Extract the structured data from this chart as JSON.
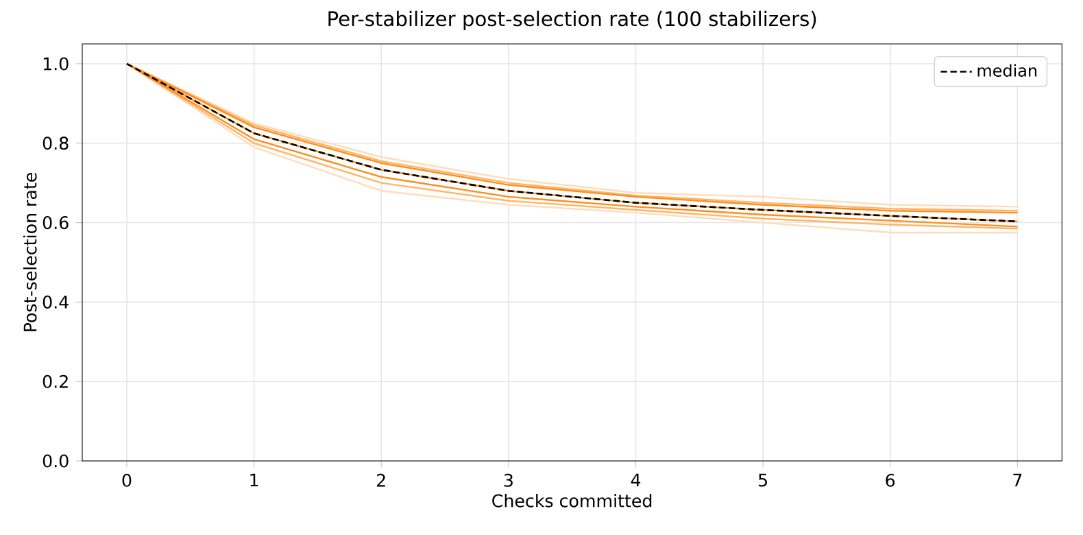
{
  "chart_data": {
    "type": "line",
    "title": "Per-stabilizer post-selection rate (100 stabilizers)",
    "xlabel": "Checks committed",
    "ylabel": "Post-selection rate",
    "x": [
      0,
      1,
      2,
      3,
      4,
      5,
      6,
      7
    ],
    "series": [
      {
        "color": "#ffdcb8",
        "line_style": "solid",
        "values": [
          1.0,
          0.85,
          0.765,
          0.71,
          0.675,
          0.665,
          0.645,
          0.64
        ]
      },
      {
        "color": "#ffdcb8",
        "line_style": "solid",
        "values": [
          1.0,
          0.79,
          0.68,
          0.645,
          0.625,
          0.6,
          0.575,
          0.575
        ]
      },
      {
        "color": "#ffb466",
        "line_style": "solid",
        "values": [
          1.0,
          0.845,
          0.755,
          0.7,
          0.668,
          0.65,
          0.635,
          0.63
        ]
      },
      {
        "color": "#ffb466",
        "line_style": "solid",
        "values": [
          1.0,
          0.8,
          0.7,
          0.655,
          0.632,
          0.61,
          0.595,
          0.585
        ]
      },
      {
        "color": "#ff8c1a",
        "line_style": "solid",
        "values": [
          1.0,
          0.84,
          0.75,
          0.695,
          0.665,
          0.645,
          0.63,
          0.625
        ]
      },
      {
        "color": "#ff8c1a",
        "line_style": "solid",
        "values": [
          1.0,
          0.81,
          0.715,
          0.665,
          0.64,
          0.62,
          0.605,
          0.59
        ]
      },
      {
        "color": "#ff8c1a",
        "line_style": "solid",
        "values": [
          1.0,
          0.825,
          0.733,
          0.68,
          0.65,
          0.632,
          0.617,
          0.603
        ]
      },
      {
        "name": "median",
        "color": "#000000",
        "line_style": "dashed",
        "values": [
          1.0,
          0.825,
          0.733,
          0.68,
          0.65,
          0.632,
          0.617,
          0.603
        ]
      }
    ],
    "xlim": [
      -0.35,
      7.35
    ],
    "ylim": [
      0,
      1.05
    ],
    "xticks": [
      0,
      1,
      2,
      3,
      4,
      5,
      6,
      7
    ],
    "yticks": [
      {
        "value": 0,
        "label": "0.0"
      },
      {
        "value": 0.2,
        "label": "0.2"
      },
      {
        "value": 0.4,
        "label": "0.4"
      },
      {
        "value": 0.6,
        "label": "0.6"
      },
      {
        "value": 0.8,
        "label": "0.8"
      },
      {
        "value": 1.0,
        "label": "1.0"
      }
    ],
    "grid": true,
    "legend": "top right"
  }
}
